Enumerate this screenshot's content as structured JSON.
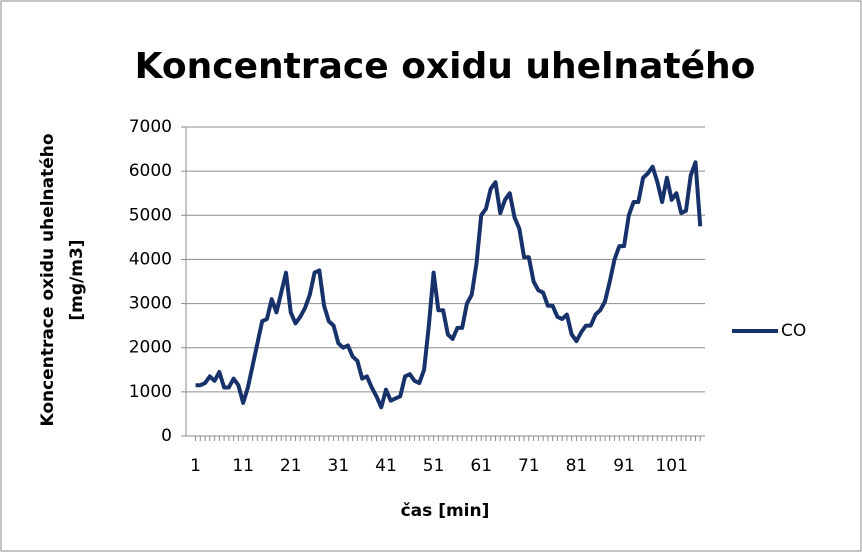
{
  "chart_data": {
    "type": "line",
    "title": "Koncentrace oxidu uhelnatého",
    "xlabel": "čas [min]",
    "ylabel": [
      "Koncentrace oxidu uhelnatého",
      "[mg/m3]"
    ],
    "x": [
      1,
      2,
      3,
      4,
      5,
      6,
      7,
      8,
      9,
      10,
      11,
      12,
      13,
      14,
      15,
      16,
      17,
      18,
      19,
      20,
      21,
      22,
      23,
      24,
      25,
      26,
      27,
      28,
      29,
      30,
      31,
      32,
      33,
      34,
      35,
      36,
      37,
      38,
      39,
      40,
      41,
      42,
      43,
      44,
      45,
      46,
      47,
      48,
      49,
      50,
      51,
      52,
      53,
      54,
      55,
      56,
      57,
      58,
      59,
      60,
      61,
      62,
      63,
      64,
      65,
      66,
      67,
      68,
      69,
      70,
      71,
      72,
      73,
      74,
      75,
      76,
      77,
      78,
      79,
      80,
      81,
      82,
      83,
      84,
      85,
      86,
      87,
      88,
      89,
      90,
      91,
      92,
      93,
      94,
      95,
      96,
      97,
      98,
      99,
      100,
      101,
      102,
      103,
      104,
      105,
      106,
      107
    ],
    "series": [
      {
        "name": "CO",
        "color": "#17326b",
        "values": [
          1150,
          1150,
          1200,
          1350,
          1250,
          1450,
          1100,
          1100,
          1300,
          1150,
          750,
          1100,
          1600,
          2100,
          2600,
          2650,
          3100,
          2800,
          3250,
          3700,
          2800,
          2550,
          2700,
          2900,
          3200,
          3700,
          3750,
          2950,
          2600,
          2500,
          2100,
          2000,
          2050,
          1800,
          1700,
          1300,
          1350,
          1100,
          900,
          650,
          1050,
          800,
          850,
          900,
          1350,
          1400,
          1250,
          1200,
          1500,
          2500,
          3700,
          2850,
          2850,
          2300,
          2200,
          2450,
          2450,
          3000,
          3200,
          3900,
          5000,
          5150,
          5600,
          5750,
          5050,
          5350,
          5500,
          4950,
          4700,
          4050,
          4050,
          3500,
          3300,
          3250,
          2950,
          2950,
          2700,
          2650,
          2750,
          2300,
          2150,
          2350,
          2500,
          2500,
          2750,
          2850,
          3050,
          3500,
          4000,
          4300,
          4300,
          5000,
          5300,
          5300,
          5850,
          5950,
          6100,
          5750,
          5300,
          5850,
          5350,
          5500,
          5050,
          5100,
          5900,
          6200,
          4750
        ]
      }
    ],
    "xlim": [
      -1,
      108
    ],
    "xticks": [
      1,
      11,
      21,
      31,
      41,
      51,
      61,
      71,
      81,
      91,
      101
    ],
    "ylim": [
      0,
      7000
    ],
    "yticks": [
      0,
      1000,
      2000,
      3000,
      4000,
      5000,
      6000,
      7000
    ],
    "grid": true,
    "legend": "right"
  }
}
